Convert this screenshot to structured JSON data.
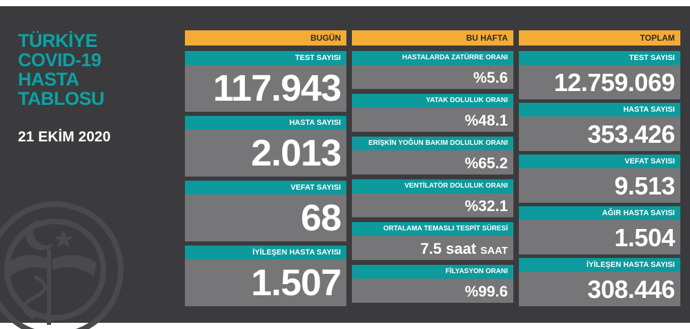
{
  "title_lines": [
    "TÜRKİYE",
    "COVID-19",
    "HASTA",
    "TABLOSU"
  ],
  "date": "21 EKİM 2020",
  "colors": {
    "teal": "#0d9a9c",
    "orange": "#f4ac35",
    "panel": "#3b3b3d",
    "value_bg": "#767678"
  },
  "today": {
    "header": "BUGÜN",
    "items": [
      {
        "label": "TEST SAYISI",
        "value": "117.943"
      },
      {
        "label": "HASTA SAYISI",
        "value": "2.013"
      },
      {
        "label": "VEFAT SAYISI",
        "value": "68"
      },
      {
        "label": "İYİLEŞEN HASTA SAYISI",
        "value": "1.507"
      }
    ]
  },
  "week": {
    "header": "BU HAFTA",
    "items": [
      {
        "label": "HASTALARDA ZATÜRRE ORANI",
        "value": "%5.6"
      },
      {
        "label": "YATAK DOLULUK ORANI",
        "value": "%48.1"
      },
      {
        "label": "ERİŞKİN YOĞUN BAKIM DOLULUK ORANI",
        "value": "%65.2"
      },
      {
        "label": "VENTİLATÖR DOLULUK ORANI",
        "value": "%32.1"
      },
      {
        "label": "ORTALAMA TEMASLI TESPİT SÜRESİ",
        "value": "7.5 saat",
        "unit": "SAAT"
      },
      {
        "label": "FİLYASYON ORANI",
        "value": "%99.6"
      }
    ]
  },
  "total": {
    "header": "TOPLAM",
    "items": [
      {
        "label": "TEST SAYISI",
        "value": "12.759.069"
      },
      {
        "label": "HASTA SAYISI",
        "value": "353.426"
      },
      {
        "label": "VEFAT SAYISI",
        "value": "9.513"
      },
      {
        "label": "AĞIR HASTA SAYISI",
        "value": "1.504"
      },
      {
        "label": "İYİLEŞEN HASTA SAYISI",
        "value": "308.446"
      }
    ]
  }
}
